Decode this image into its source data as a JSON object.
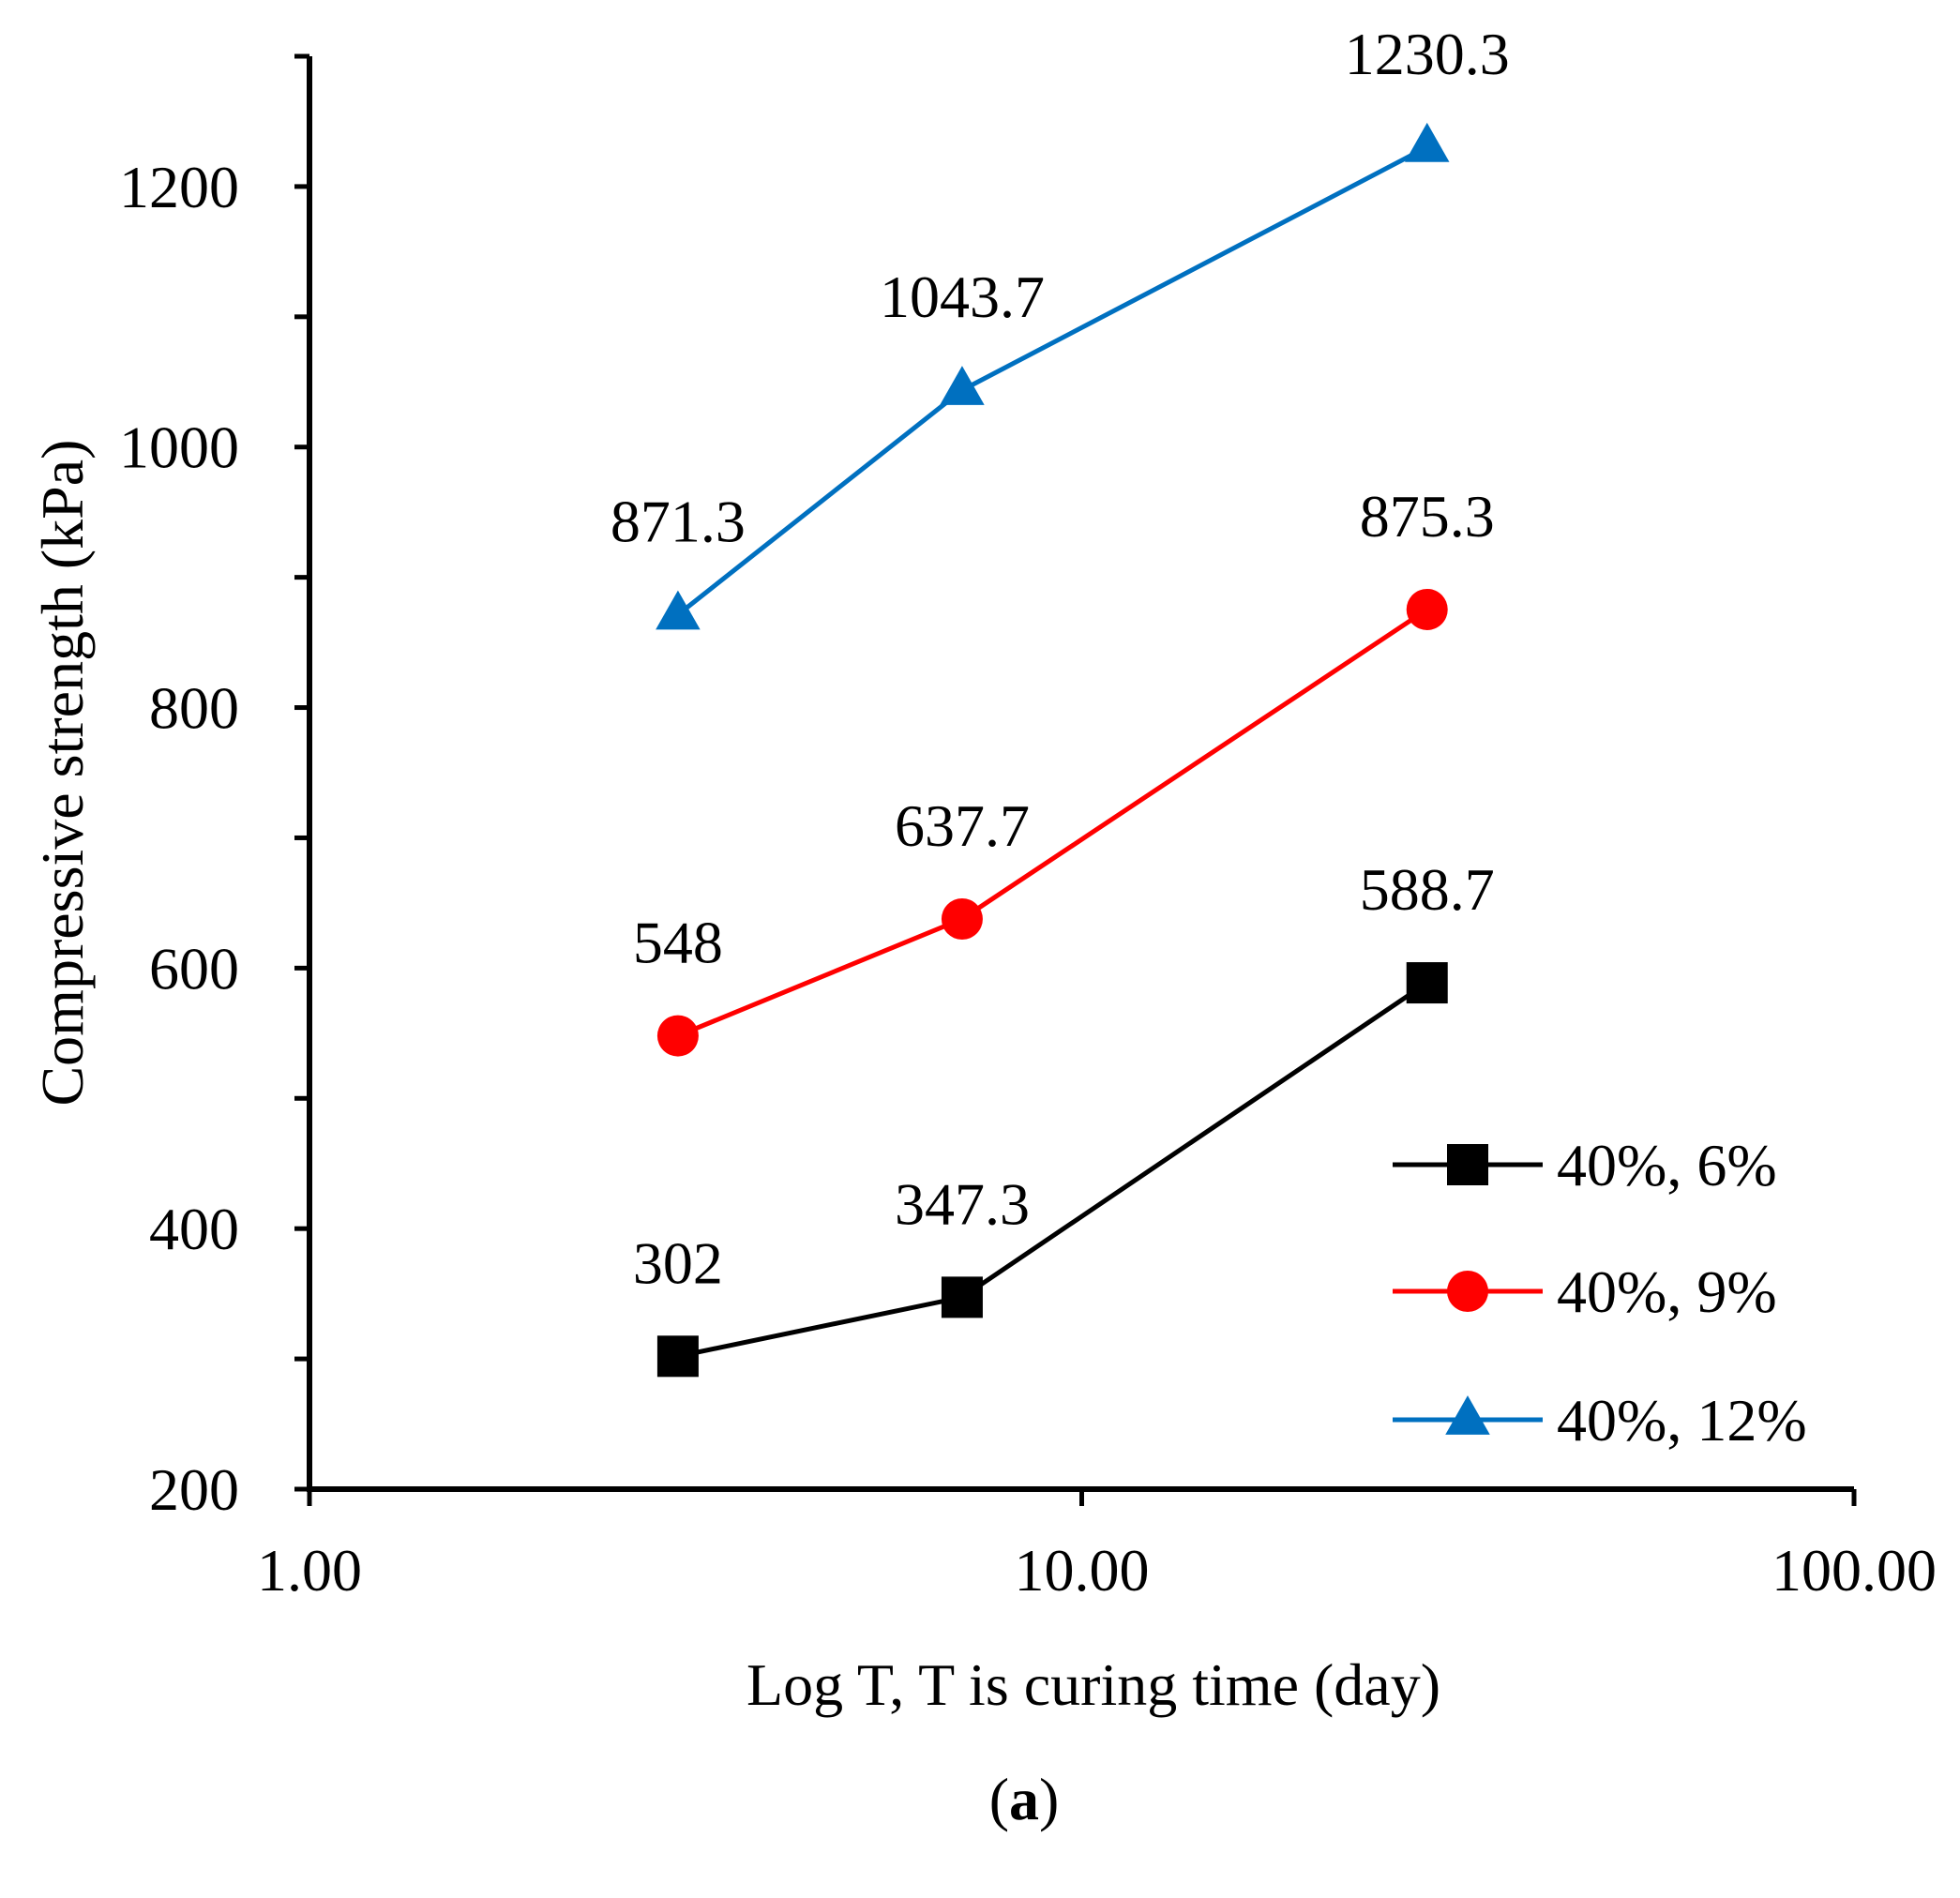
{
  "chart_data": {
    "type": "line",
    "xscale": "log",
    "x": [
      3,
      7,
      28
    ],
    "xlim": [
      1,
      100
    ],
    "ylim": [
      200,
      1300
    ],
    "xticks": [
      1,
      10,
      100
    ],
    "xtick_labels": [
      "1.00",
      "10.00",
      "100.00"
    ],
    "yticks": [
      200,
      400,
      600,
      800,
      1000,
      1200
    ],
    "ytick_labels": [
      "200",
      "400",
      "600",
      "800",
      "1000",
      "1200"
    ],
    "xlabel": "Log T, T is curing time (day)",
    "ylabel": "Compressive strength (kPa)",
    "caption_open": "(",
    "caption_letter": "a",
    "caption_close": ")",
    "legend_position": "lower-right",
    "series": [
      {
        "name": "40%, 6%",
        "values": [
          302,
          347.3,
          588.7
        ],
        "labels": [
          "302",
          "347.3",
          "588.7"
        ],
        "color": "#000000",
        "marker": "square"
      },
      {
        "name": "40%, 9%",
        "values": [
          548,
          637.7,
          875.3
        ],
        "labels": [
          "548",
          "637.7",
          "875.3"
        ],
        "color": "#ff0000",
        "marker": "circle"
      },
      {
        "name": "40%, 12%",
        "values": [
          871.3,
          1043.7,
          1230.3
        ],
        "labels": [
          "871.3",
          "1043.7",
          "1230.3"
        ],
        "color": "#0070c0",
        "marker": "triangle"
      }
    ]
  }
}
